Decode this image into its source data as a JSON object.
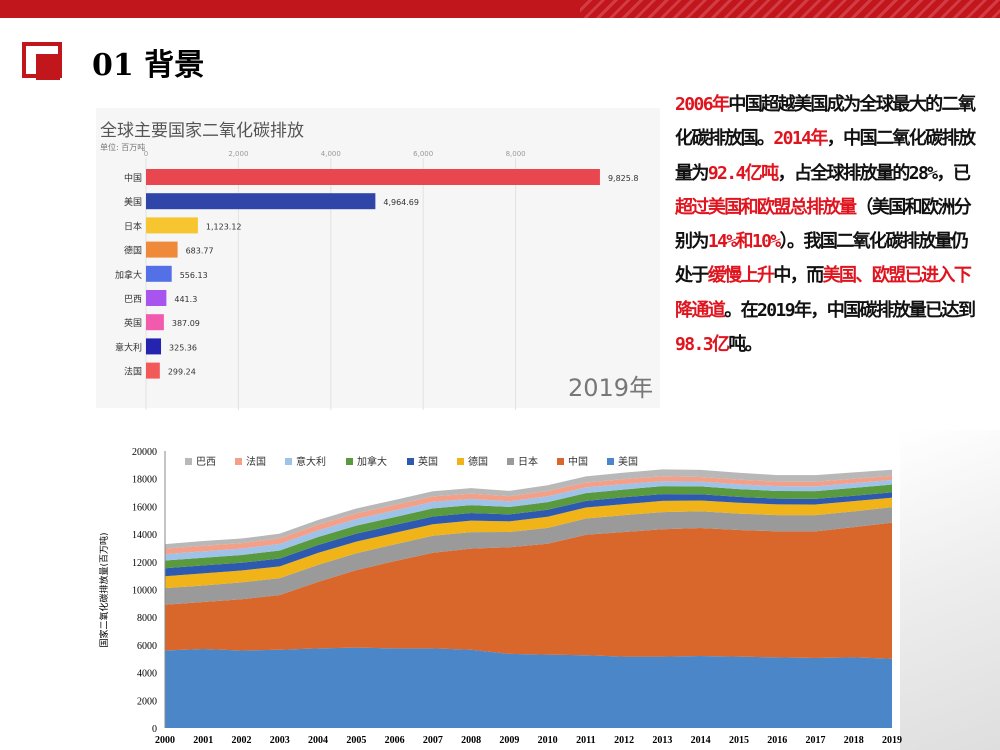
{
  "header": {
    "title": "01 背景"
  },
  "description": [
    {
      "text": "2006年",
      "hl": true
    },
    {
      "text": "中国超越美国成为全球最大的二氧化碳排放国。",
      "hl": false
    },
    {
      "text": "2014年",
      "hl": true
    },
    {
      "text": "，中国二氧化碳排放量为",
      "hl": false
    },
    {
      "text": "92.4亿吨",
      "hl": true
    },
    {
      "text": "，占全球排放量的28%，已",
      "hl": false
    },
    {
      "text": "超过美国和欧盟总排放量",
      "hl": true
    },
    {
      "text": "（美国和欧洲分别为",
      "hl": false
    },
    {
      "text": "14%和10%",
      "hl": true
    },
    {
      "text": "）。我国二氧化碳排放量仍处于",
      "hl": false
    },
    {
      "text": "缓慢上升",
      "hl": true
    },
    {
      "text": "中，而",
      "hl": false
    },
    {
      "text": "美国、欧盟已进入下降通道",
      "hl": true
    },
    {
      "text": "。在2019年，中国碳排放量已达到",
      "hl": false
    },
    {
      "text": "98.3亿",
      "hl": true
    },
    {
      "text": "吨。",
      "hl": false
    }
  ],
  "chart_data": [
    {
      "type": "bar",
      "title": "全球主要国家二氧化碳排放",
      "unit": "单位: 百万吨",
      "year_label": "2019年",
      "xlim": [
        0,
        10000
      ],
      "xticks": [
        0,
        2000,
        4000,
        6000,
        8000
      ],
      "xtick_labels": [
        "0",
        "2,000",
        "4,000",
        "6,000",
        "8,000"
      ],
      "categories": [
        "中国",
        "美国",
        "日本",
        "德国",
        "加拿大",
        "巴西",
        "英国",
        "意大利",
        "法国"
      ],
      "values": [
        9825.8,
        4964.69,
        1123.12,
        683.77,
        556.13,
        441.3,
        387.09,
        325.36,
        299.24
      ],
      "value_labels": [
        "9,825.8",
        "4,964.69",
        "1,123.12",
        "683.77",
        "556.13",
        "441.3",
        "387.09",
        "325.36",
        "299.24"
      ],
      "colors": [
        "#e8474f",
        "#2f46a8",
        "#f7c530",
        "#ef8a3a",
        "#5470e6",
        "#a855f0",
        "#f25aad",
        "#2424b0",
        "#f25a5a"
      ]
    },
    {
      "type": "area",
      "stacked": true,
      "ylabel": "国家二氧化碳排放量(百万吨)",
      "xlabel": "",
      "ylim": [
        0,
        20000
      ],
      "yticks": [
        0,
        2000,
        4000,
        6000,
        8000,
        10000,
        12000,
        14000,
        16000,
        18000,
        20000
      ],
      "x": [
        "2000",
        "2001",
        "2002",
        "2003",
        "2004",
        "2005",
        "2006",
        "2007",
        "2008",
        "2009",
        "2010",
        "2011",
        "2012",
        "2013",
        "2014",
        "2015",
        "2016",
        "2017",
        "2018",
        "2019"
      ],
      "legend": [
        "巴西",
        "法国",
        "意大利",
        "加拿大",
        "英国",
        "德国",
        "日本",
        "中国",
        "美国"
      ],
      "series": [
        {
          "name": "美国",
          "color": "#4a86c8",
          "values": [
            5600,
            5700,
            5600,
            5650,
            5750,
            5800,
            5750,
            5750,
            5650,
            5350,
            5300,
            5250,
            5150,
            5150,
            5200,
            5150,
            5100,
            5050,
            5100,
            5000
          ]
        },
        {
          "name": "中国",
          "color": "#d9662a",
          "values": [
            3300,
            3400,
            3700,
            3950,
            4800,
            5600,
            6300,
            6900,
            7300,
            7700,
            8000,
            8700,
            9000,
            9200,
            9240,
            9150,
            9100,
            9150,
            9400,
            9830
          ]
        },
        {
          "name": "日本",
          "color": "#9a9a9a",
          "values": [
            1200,
            1190,
            1210,
            1220,
            1230,
            1220,
            1210,
            1230,
            1190,
            1100,
            1150,
            1180,
            1220,
            1240,
            1210,
            1180,
            1170,
            1170,
            1140,
            1120
          ]
        },
        {
          "name": "德国",
          "color": "#f0b418",
          "values": [
            860,
            870,
            860,
            850,
            860,
            840,
            830,
            830,
            830,
            770,
            800,
            790,
            790,
            810,
            780,
            780,
            780,
            770,
            740,
            680
          ]
        },
        {
          "name": "英国",
          "color": "#2e59b0",
          "values": [
            570,
            580,
            560,
            570,
            570,
            570,
            570,
            560,
            550,
            500,
            510,
            480,
            500,
            490,
            450,
            430,
            410,
            400,
            390,
            390
          ]
        },
        {
          "name": "加拿大",
          "color": "#5a9a3e",
          "values": [
            560,
            550,
            560,
            580,
            580,
            580,
            570,
            590,
            570,
            540,
            550,
            560,
            560,
            570,
            570,
            560,
            550,
            560,
            570,
            560
          ]
        },
        {
          "name": "意大利",
          "color": "#9fc2e8",
          "values": [
            460,
            460,
            460,
            470,
            480,
            480,
            480,
            470,
            450,
            410,
            420,
            410,
            390,
            360,
            340,
            350,
            350,
            350,
            340,
            330
          ]
        },
        {
          "name": "法国",
          "color": "#f4a088",
          "values": [
            400,
            410,
            400,
            410,
            410,
            410,
            400,
            390,
            380,
            370,
            380,
            360,
            360,
            360,
            330,
            330,
            330,
            330,
            320,
            300
          ]
        },
        {
          "name": "巴西",
          "color": "#b8b8b8",
          "values": [
            330,
            340,
            330,
            330,
            340,
            350,
            350,
            370,
            400,
            380,
            420,
            440,
            470,
            490,
            520,
            500,
            470,
            480,
            460,
            440
          ]
        }
      ]
    }
  ]
}
